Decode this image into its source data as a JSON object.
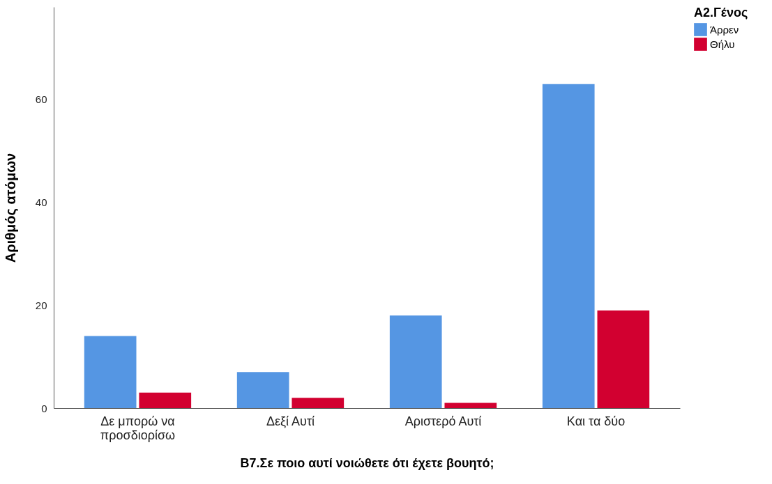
{
  "chart_data": {
    "type": "bar",
    "xlabel": "Β7.Σε ποιο αυτί νοιώθετε ότι έχετε βουητό;",
    "ylabel": "Αριθμός ατόμων",
    "legend_title": "Α2.Γένος",
    "categories": [
      "Δε μπορώ να προσδιορίσω",
      "Δεξί Αυτί",
      "Αριστερό Αυτί",
      "Και τα δύο"
    ],
    "series": [
      {
        "name": "Άρρεν",
        "color": "#5596e3",
        "values": [
          14,
          7,
          18,
          63
        ]
      },
      {
        "name": "Θήλυ",
        "color": "#d20030",
        "values": [
          3,
          2,
          1,
          19
        ]
      }
    ],
    "ylim": [
      0,
      78
    ],
    "yticks": [
      0,
      20,
      40,
      60
    ],
    "grid": false,
    "legend": "top right"
  }
}
